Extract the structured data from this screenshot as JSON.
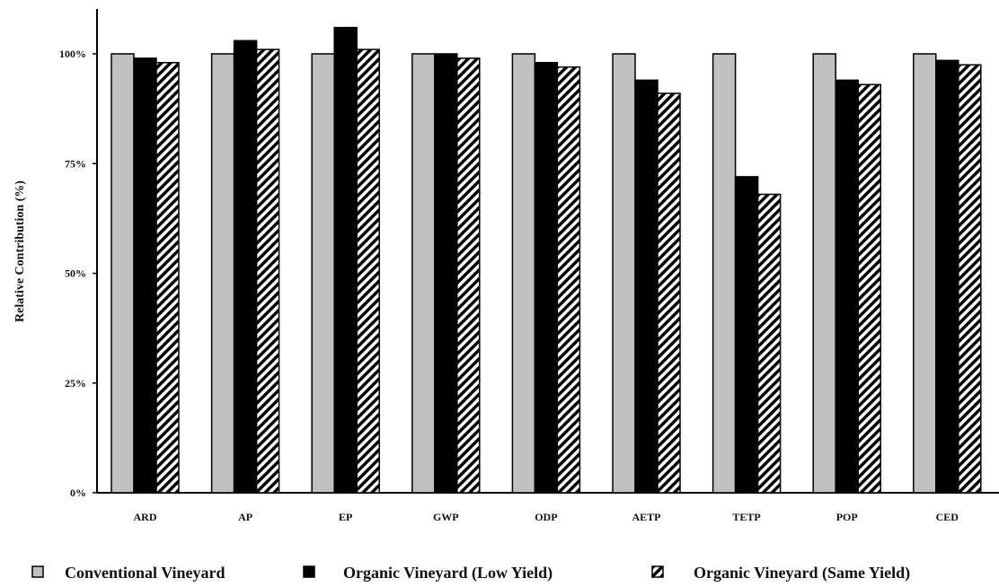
{
  "chart_data": {
    "type": "bar",
    "title": "",
    "xlabel": "",
    "ylabel": "Relative Contribution (%)",
    "categories": [
      "ARD",
      "AP",
      "EP",
      "GWP",
      "ODP",
      "AETP",
      "TETP",
      "POP",
      "CED"
    ],
    "y_ticks": [
      "0%",
      "25%",
      "50%",
      "75%",
      "100%"
    ],
    "ylim": [
      0,
      110
    ],
    "grid": false,
    "legend_position": "bottom",
    "series": [
      {
        "name": "Conventional Vineyard",
        "values": [
          100,
          100,
          100,
          100,
          100,
          100,
          100,
          100,
          100
        ],
        "style": "fill",
        "color": "#c0c0c0"
      },
      {
        "name": "Organic Vineyard (Low Yield)",
        "values": [
          99,
          103,
          106,
          100,
          98,
          94,
          72,
          94,
          98.5
        ],
        "style": "fill",
        "color": "#000000"
      },
      {
        "name": "Organic Vineyard (Same Yield)",
        "values": [
          98,
          101,
          101,
          99,
          97,
          91,
          68,
          93,
          97.5
        ],
        "style": "hatch",
        "color": "#000000"
      }
    ]
  }
}
